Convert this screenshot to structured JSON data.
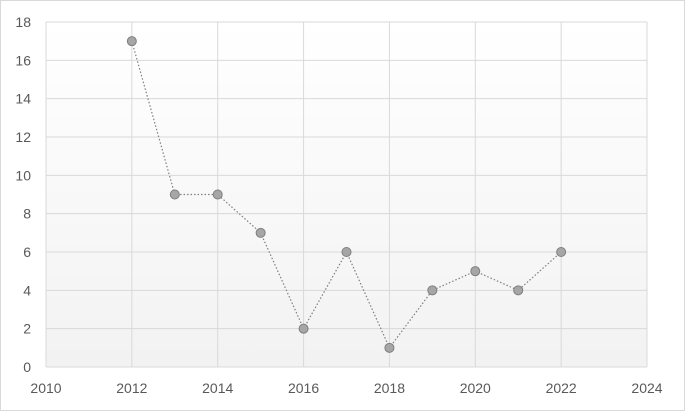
{
  "chart_data": {
    "type": "scatter",
    "series": [
      {
        "x": [
          2012,
          2013,
          2014,
          2015,
          2016,
          2017,
          2018,
          2019,
          2020,
          2021,
          2022
        ],
        "y": [
          17,
          9,
          9,
          7,
          2,
          6,
          1,
          4,
          5,
          4,
          6
        ]
      }
    ],
    "xlim": [
      2010,
      2024
    ],
    "ylim": [
      0,
      18
    ],
    "x_ticks": [
      2010,
      2012,
      2014,
      2016,
      2018,
      2020,
      2022,
      2024
    ],
    "y_ticks": [
      0,
      2,
      4,
      6,
      8,
      10,
      12,
      14,
      16,
      18
    ],
    "grid": true,
    "line_style": "dotted",
    "marker_color": "#a6a6a6",
    "marker_edge_color": "#7f7f7f",
    "line_color": "#7f7f7f",
    "grid_color": "#d9d9d9",
    "background_gradient": [
      "#ffffff",
      "#f2f2f2"
    ]
  }
}
